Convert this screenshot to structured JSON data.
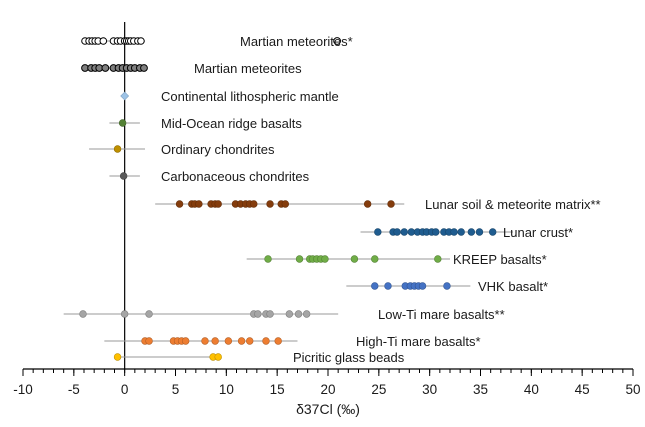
{
  "chart_data": {
    "type": "scatter",
    "title": "",
    "xlabel": "δ37Cl (‰)",
    "ylabel": "",
    "xlim": [
      -10,
      50
    ],
    "xticks": [
      -10,
      -5,
      0,
      5,
      10,
      15,
      20,
      25,
      30,
      35,
      40,
      45,
      50
    ],
    "minor_tick_step": 1,
    "zero_line": true,
    "grid": false,
    "colors": {
      "martian_open": "#ffffff",
      "martian": "#7f7f7f",
      "mantle": "#9dc3e6",
      "morb": "#548235",
      "ordinary": "#bf9000",
      "carbonaceous": "#595959",
      "lunar_soil": "#843c0c",
      "lunar_crust": "#1f5c8f",
      "kreep": "#70ad47",
      "vhk": "#4472c4",
      "low_ti": "#a5a5a5",
      "high_ti": "#ed7d31",
      "picritic": "#ffc000",
      "range_line": "#9a9a9a",
      "axis": "#000000"
    },
    "series": [
      {
        "name": "Martian meteorites*",
        "color_key": "martian_open",
        "open": true,
        "range": [
          -4,
          2
        ],
        "legend_marker_x": 2.8,
        "values": [
          -3.9,
          -3.5,
          -3.2,
          -2.9,
          -2.6,
          -2.1,
          -1.1,
          -0.7,
          -0.4,
          0,
          0.2,
          0.4,
          0.6,
          0.9,
          1.3,
          1.6
        ]
      },
      {
        "name": "Martian meteorites",
        "color_key": "martian",
        "range": [
          -4,
          2
        ],
        "values": [
          -3.9,
          -3.3,
          -2.9,
          -2.5,
          -1.9,
          -1.1,
          -0.6,
          -0.2,
          0.2,
          0.6,
          1.0,
          1.5,
          1.9
        ]
      },
      {
        "name": "Continental lithospheric mantle",
        "color_key": "mantle",
        "marker": "diamond",
        "range": [
          -0.2,
          0.2
        ],
        "values": [
          0
        ]
      },
      {
        "name": "Mid-Ocean ridge basalts",
        "color_key": "morb",
        "range": [
          -1.5,
          1.5
        ],
        "values": [
          -0.2
        ]
      },
      {
        "name": "Ordinary chondrites",
        "color_key": "ordinary",
        "range": [
          -3.5,
          2
        ],
        "values": [
          -0.7
        ]
      },
      {
        "name": "Carbonaceous chondrites",
        "color_key": "carbonaceous",
        "range": [
          -1.5,
          1.5
        ],
        "values": [
          -0.1
        ]
      },
      {
        "name": "Lunar soil & meteorite matrix**",
        "color_key": "lunar_soil",
        "range": [
          3,
          27.5
        ],
        "values": [
          5.4,
          6.6,
          6.9,
          7.3,
          8.5,
          8.9,
          9.2,
          10.9,
          11.4,
          11.9,
          12.3,
          12.7,
          14.3,
          15.4,
          15.8,
          23.9,
          26.2
        ]
      },
      {
        "name": "Lunar crust*",
        "color_key": "lunar_crust",
        "range": [
          23.2,
          38.2
        ],
        "values": [
          24.9,
          26.4,
          26.8,
          27.5,
          28.2,
          28.8,
          29.3,
          29.7,
          30.2,
          30.6,
          31.4,
          31.9,
          32.4,
          33.1,
          34.1,
          34.9,
          36.2
        ]
      },
      {
        "name": "KREEP basalts*",
        "color_key": "kreep",
        "range": [
          12,
          32
        ],
        "values": [
          14.1,
          17.2,
          18.2,
          18.5,
          18.9,
          19.3,
          19.7,
          22.6,
          24.6,
          30.8
        ]
      },
      {
        "name": "VHK basalt*",
        "color_key": "vhk",
        "range": [
          21.8,
          34
        ],
        "values": [
          24.6,
          25.9,
          27.6,
          28.1,
          28.5,
          28.9,
          29.3,
          31.7
        ]
      },
      {
        "name": "Low-Ti mare basalts**",
        "color_key": "low_ti",
        "range": [
          -6,
          21
        ],
        "values": [
          -4.1,
          0,
          2.4,
          12.7,
          13.1,
          13.9,
          14.3,
          16.2,
          17.1,
          17.9
        ]
      },
      {
        "name": "High-Ti mare basalts*",
        "color_key": "high_ti",
        "range": [
          -2,
          17
        ],
        "values": [
          2,
          2.4,
          4.8,
          5.2,
          5.6,
          6.0,
          7.9,
          8.9,
          10.2,
          11.5,
          12.3,
          13.9,
          15.1
        ]
      },
      {
        "name": "Picritic glass beads",
        "color_key": "picritic",
        "range": [
          -1,
          9.5
        ],
        "values": [
          -0.7,
          8.7,
          9.2
        ]
      }
    ]
  }
}
